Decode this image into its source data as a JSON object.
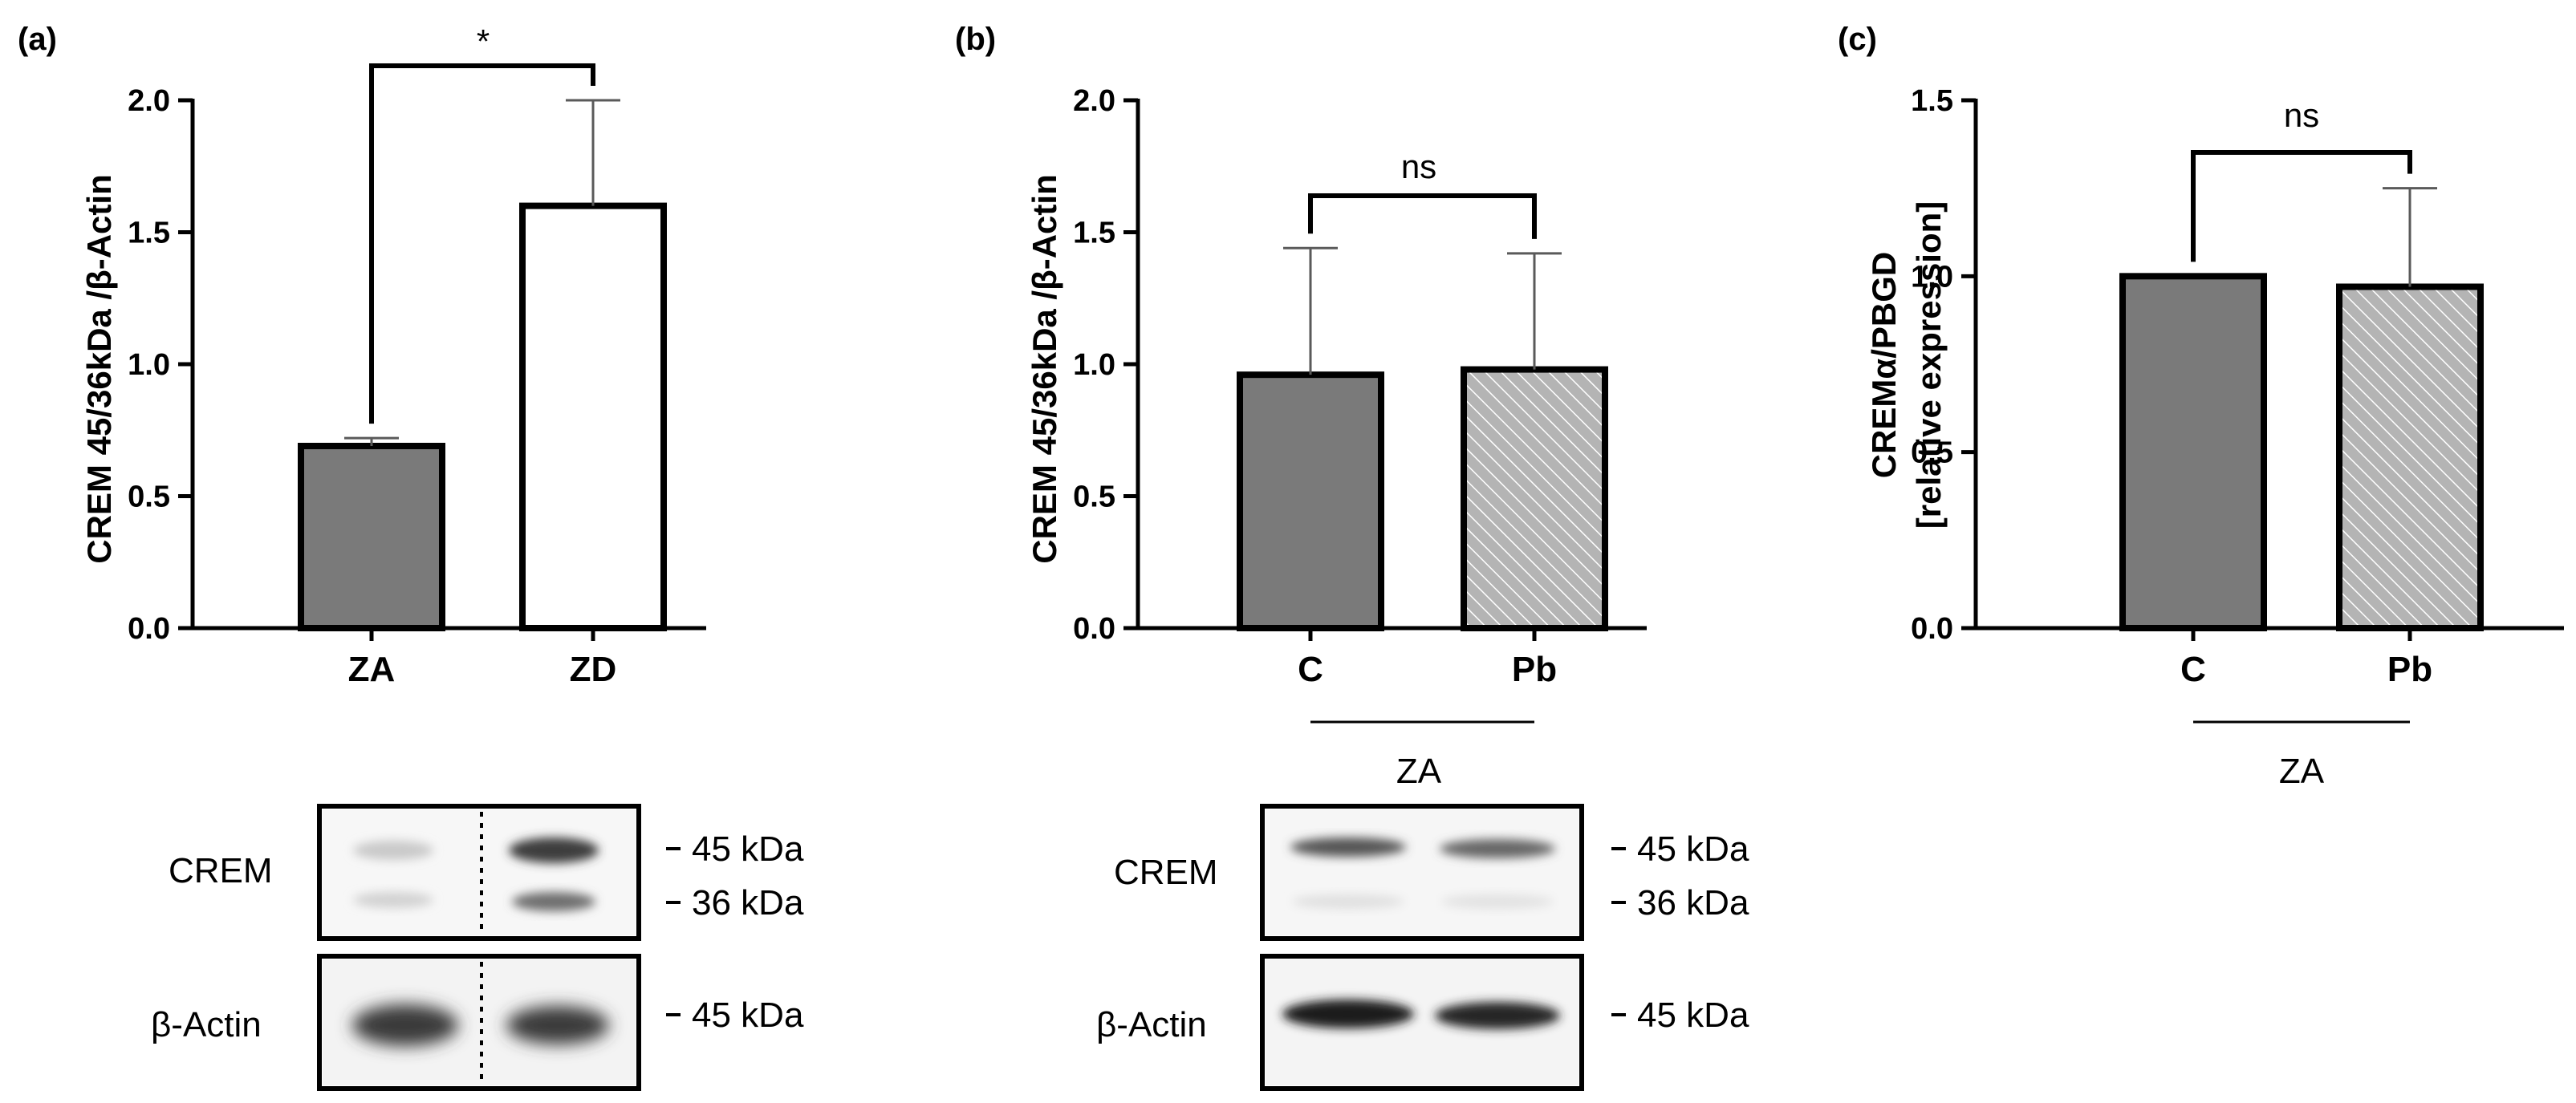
{
  "panels": [
    {
      "label": "(a)"
    },
    {
      "label": "(b)"
    },
    {
      "label": "(c)"
    }
  ],
  "chart_data": [
    {
      "type": "bar",
      "panel": "(a)",
      "categories": [
        "ZA",
        "ZD"
      ],
      "values": [
        0.69,
        1.6
      ],
      "errors": [
        0.03,
        0.4
      ],
      "bar_styles": [
        "solid-gray",
        "white"
      ],
      "ylabel": "CREM 45/36kDa /β-Actin",
      "yticks": [
        "0.0",
        "0.5",
        "1.0",
        "1.5",
        "2.0"
      ],
      "ylim": [
        0,
        2.0
      ],
      "significance": "*",
      "group_label": ""
    },
    {
      "type": "bar",
      "panel": "(b)",
      "categories": [
        "C",
        "Pb"
      ],
      "values": [
        0.96,
        0.98
      ],
      "errors": [
        0.48,
        0.44
      ],
      "bar_styles": [
        "solid-gray",
        "hatched"
      ],
      "ylabel": "CREM 45/36kDa /β-Actin",
      "yticks": [
        "0.0",
        "0.5",
        "1.0",
        "1.5",
        "2.0"
      ],
      "ylim": [
        0,
        2.0
      ],
      "significance": "ns",
      "group_label": "ZA"
    },
    {
      "type": "bar",
      "panel": "(c)",
      "categories": [
        "C",
        "Pb"
      ],
      "values": [
        1.0,
        0.97
      ],
      "errors": [
        0.0,
        0.28
      ],
      "bar_styles": [
        "solid-gray",
        "hatched"
      ],
      "ylabel": "CREMα/PBGD",
      "ylabel2": "[relative expression]",
      "yticks": [
        "0.0",
        "0.5",
        "1.0",
        "1.5"
      ],
      "ylim": [
        0,
        1.5
      ],
      "significance": "ns",
      "group_label": "ZA"
    }
  ],
  "blots": [
    {
      "panel": "(a)",
      "rows": [
        {
          "label": "CREM",
          "markers": [
            "45 kDa",
            "36 kDa"
          ]
        },
        {
          "label": "β-Actin",
          "markers": [
            "45 kDa"
          ]
        }
      ]
    },
    {
      "panel": "(b)",
      "rows": [
        {
          "label": "CREM",
          "markers": [
            "45 kDa",
            "36 kDa"
          ]
        },
        {
          "label": "β-Actin",
          "markers": [
            "45 kDa"
          ]
        }
      ]
    }
  ],
  "colors": {
    "bar_gray": "#7a7a7a",
    "hatch_fill": "#b4b4b4",
    "axis": "#000000",
    "error_bar": "#5a5a5a"
  }
}
